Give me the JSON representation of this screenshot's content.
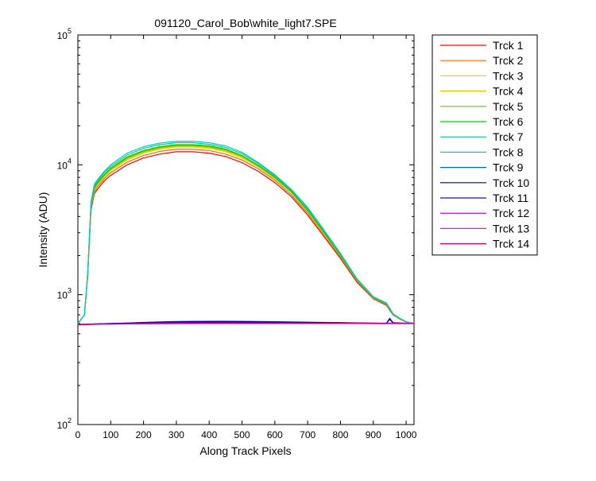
{
  "chart_data": {
    "type": "line",
    "title": "091120_Carol_Bob\\white_light7.SPE",
    "xlabel": "Along Track Pixels",
    "ylabel": "Intensity (ADU)",
    "xlim": [
      0,
      1024
    ],
    "ylim": [
      100,
      100000
    ],
    "yscale": "log",
    "grid": false,
    "legend_position": "outside-right-top",
    "x_ticks": [
      0,
      100,
      200,
      300,
      400,
      500,
      600,
      700,
      800,
      900,
      1000
    ],
    "x_tick_labels": [
      "0",
      "100",
      "200",
      "300",
      "400",
      "500",
      "600",
      "700",
      "800",
      "900",
      "1000"
    ],
    "y_ticks": [
      {
        "value": 100,
        "base": "10",
        "exp": "2"
      },
      {
        "value": 1000,
        "base": "10",
        "exp": "3"
      },
      {
        "value": 10000,
        "base": "10",
        "exp": "4"
      },
      {
        "value": 100000,
        "base": "10",
        "exp": "5"
      }
    ],
    "x": [
      0,
      20,
      30,
      40,
      50,
      60,
      80,
      100,
      150,
      200,
      250,
      300,
      350,
      400,
      450,
      500,
      550,
      600,
      650,
      700,
      750,
      800,
      850,
      900,
      940,
      950,
      960,
      980,
      1000,
      1024
    ],
    "series": [
      {
        "name": "Trck 1",
        "color": "#ff0000",
        "values": [
          600,
          700,
          1400,
          4500,
          6000,
          6500,
          7500,
          8300,
          10000,
          11300,
          12100,
          12600,
          12600,
          12300,
          11600,
          10400,
          8900,
          7300,
          5700,
          4100,
          2800,
          1900,
          1250,
          930,
          830,
          760,
          700,
          650,
          615,
          600
        ]
      },
      {
        "name": "Trck 2",
        "color": "#ff6600",
        "values": [
          600,
          700,
          1450,
          4700,
          6200,
          6800,
          7800,
          8700,
          10500,
          11800,
          12700,
          13200,
          13200,
          12900,
          12100,
          10900,
          9300,
          7600,
          5900,
          4250,
          2900,
          1950,
          1280,
          940,
          840,
          770,
          705,
          652,
          616,
          600
        ]
      },
      {
        "name": "Trck 3",
        "color": "#ffcc00",
        "values": [
          600,
          700,
          1450,
          4800,
          6400,
          7000,
          8000,
          9000,
          10900,
          12300,
          13200,
          13700,
          13700,
          13400,
          12600,
          11300,
          9600,
          7800,
          6100,
          4350,
          2950,
          1980,
          1290,
          945,
          845,
          775,
          708,
          654,
          617,
          600
        ]
      },
      {
        "name": "Trck 4",
        "color": "#cccc00",
        "values": [
          600,
          700,
          1450,
          4850,
          6500,
          7100,
          8150,
          9150,
          11100,
          12500,
          13400,
          13900,
          13900,
          13600,
          12800,
          11500,
          9700,
          7900,
          6150,
          4400,
          2980,
          1990,
          1295,
          948,
          848,
          777,
          709,
          655,
          617,
          600
        ]
      },
      {
        "name": "Trck 5",
        "color": "#66cc00",
        "values": [
          600,
          700,
          1450,
          4900,
          6600,
          7200,
          8300,
          9300,
          11300,
          12700,
          13600,
          14100,
          14100,
          13800,
          13000,
          11700,
          9800,
          8000,
          6200,
          4450,
          3000,
          2000,
          1300,
          950,
          850,
          780,
          710,
          656,
          618,
          600
        ]
      },
      {
        "name": "Trck 6",
        "color": "#00cc00",
        "values": [
          600,
          700,
          1450,
          4950,
          6700,
          7300,
          8400,
          9400,
          11500,
          12900,
          13800,
          14300,
          14300,
          14000,
          13200,
          11800,
          9900,
          8100,
          6250,
          4480,
          3020,
          2010,
          1305,
          952,
          852,
          781,
          711,
          657,
          618,
          600
        ]
      },
      {
        "name": "Trck 7",
        "color": "#00cc99",
        "values": [
          600,
          700,
          1500,
          5100,
          6900,
          7500,
          8700,
          9700,
          11900,
          13400,
          14300,
          14800,
          14800,
          14400,
          13600,
          12200,
          10200,
          8300,
          6400,
          4600,
          3100,
          2050,
          1320,
          960,
          860,
          785,
          713,
          658,
          619,
          600
        ]
      },
      {
        "name": "Trck 8",
        "color": "#00cccc",
        "values": [
          600,
          700,
          1500,
          5200,
          7100,
          7700,
          8900,
          10000,
          12300,
          13800,
          14700,
          15200,
          15200,
          14800,
          14000,
          12500,
          10400,
          8400,
          6500,
          4700,
          3150,
          2080,
          1330,
          965,
          865,
          790,
          715,
          660,
          620,
          600
        ]
      },
      {
        "name": "Trck 9",
        "color": "#0066cc",
        "values": [
          590,
          592,
          593,
          594,
          595,
          596,
          598,
          600,
          605,
          612,
          618,
          622,
          624,
          625,
          625,
          624,
          622,
          620,
          618,
          615,
          612,
          610,
          607,
          605,
          603,
          660,
          610,
          606,
          603,
          600
        ]
      },
      {
        "name": "Trck 10",
        "color": "#000099",
        "values": [
          590,
          592,
          593,
          594,
          595,
          596,
          598,
          600,
          604,
          610,
          615,
          618,
          620,
          620,
          620,
          619,
          618,
          616,
          614,
          612,
          610,
          608,
          605,
          603,
          602,
          650,
          607,
          605,
          602,
          600
        ]
      },
      {
        "name": "Trck 11",
        "color": "#3300cc",
        "values": [
          590,
          591,
          592,
          593,
          594,
          595,
          597,
          598,
          602,
          606,
          610,
          612,
          613,
          613,
          613,
          612,
          611,
          610,
          609,
          608,
          607,
          605,
          604,
          602,
          601,
          645,
          605,
          603,
          601,
          600
        ]
      },
      {
        "name": "Trck 12",
        "color": "#9900cc",
        "values": [
          590,
          591,
          591,
          592,
          593,
          594,
          595,
          596,
          598,
          601,
          603,
          605,
          606,
          606,
          606,
          605,
          605,
          604,
          604,
          603,
          603,
          602,
          602,
          601,
          600,
          604,
          602,
          601,
          600,
          600
        ]
      },
      {
        "name": "Trck 13",
        "color": "#ff00ff",
        "values": [
          590,
          590,
          591,
          591,
          592,
          593,
          594,
          595,
          597,
          599,
          600,
          601,
          602,
          602,
          602,
          602,
          601,
          601,
          601,
          600,
          600,
          600,
          600,
          600,
          599,
          600,
          600,
          600,
          600,
          600
        ]
      },
      {
        "name": "Trck 14",
        "color": "#cc0066",
        "values": [
          590,
          590,
          590,
          591,
          591,
          592,
          593,
          594,
          596,
          597,
          598,
          599,
          599,
          600,
          600,
          600,
          600,
          600,
          600,
          600,
          600,
          600,
          600,
          599,
          599,
          599,
          599,
          599,
          599,
          599
        ]
      }
    ]
  }
}
